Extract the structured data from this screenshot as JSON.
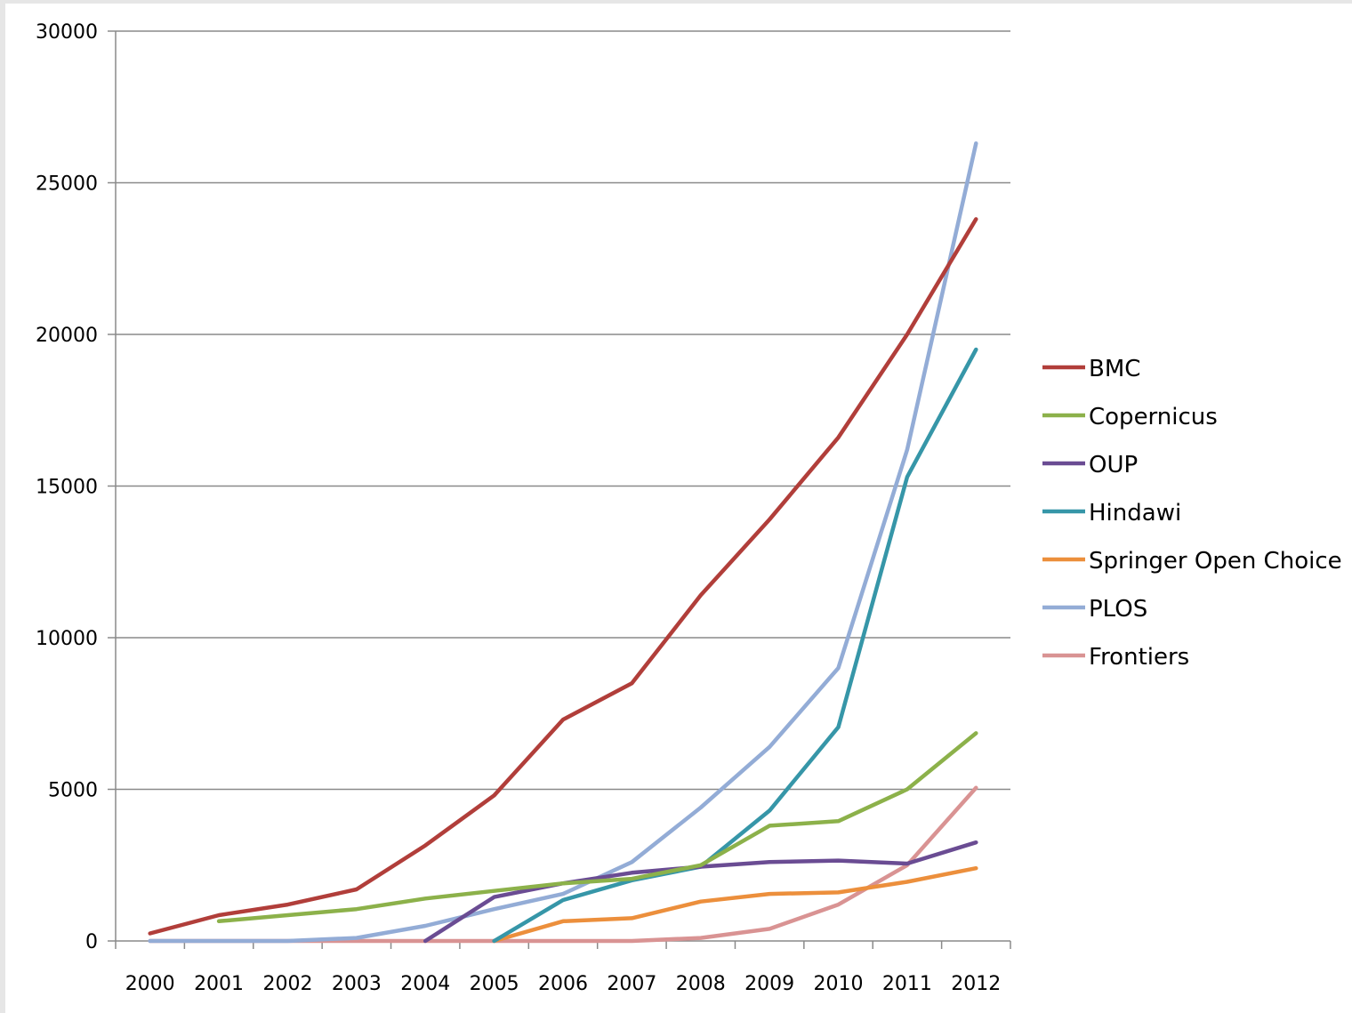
{
  "chart_data": {
    "type": "line",
    "title": "",
    "xlabel": "",
    "ylabel": "",
    "x": [
      "2000",
      "2001",
      "2002",
      "2003",
      "2004",
      "2005",
      "2006",
      "2007",
      "2008",
      "2009",
      "2010",
      "2011",
      "2012"
    ],
    "ylim": [
      0,
      30000
    ],
    "yticks": [
      0,
      5000,
      10000,
      15000,
      20000,
      25000,
      30000
    ],
    "ytick_labels": [
      "0",
      "5000",
      "10000",
      "15000",
      "20000",
      "25000",
      "30000"
    ],
    "grid": "horizontal",
    "legend_position": "right",
    "series": [
      {
        "name": "BMC",
        "color": "#b13e3a",
        "values": [
          250,
          850,
          1200,
          1700,
          3150,
          4800,
          7300,
          8500,
          11400,
          13900,
          16600,
          20000,
          23800
        ]
      },
      {
        "name": "Copernicus",
        "color": "#8cb14a",
        "values": [
          null,
          650,
          850,
          1050,
          1400,
          1650,
          1900,
          2050,
          2500,
          3800,
          3950,
          5000,
          6850
        ]
      },
      {
        "name": "OUP",
        "color": "#6a4c93",
        "values": [
          null,
          null,
          null,
          null,
          0,
          1450,
          1900,
          2250,
          2450,
          2600,
          2650,
          2550,
          3250
        ]
      },
      {
        "name": "Hindawi",
        "color": "#3696a8",
        "values": [
          null,
          null,
          null,
          null,
          null,
          0,
          1350,
          2000,
          2450,
          4300,
          7050,
          15300,
          19500
        ]
      },
      {
        "name": "Springer Open Choice",
        "color": "#ec8f3c",
        "values": [
          null,
          null,
          null,
          null,
          null,
          0,
          650,
          750,
          1300,
          1550,
          1600,
          1950,
          2400
        ]
      },
      {
        "name": "PLOS",
        "color": "#93acd6",
        "values": [
          0,
          0,
          0,
          100,
          500,
          1050,
          1550,
          2600,
          4400,
          6400,
          9000,
          16200,
          26300
        ]
      },
      {
        "name": "Frontiers",
        "color": "#d99393",
        "values": [
          0,
          0,
          0,
          0,
          0,
          0,
          0,
          0,
          100,
          400,
          1200,
          2500,
          5050
        ]
      }
    ]
  }
}
